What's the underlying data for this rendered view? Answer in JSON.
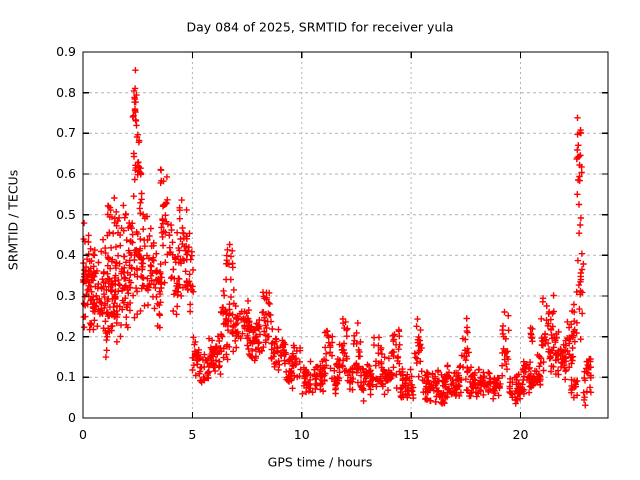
{
  "chart_data": {
    "type": "scatter",
    "title": "Day 084 of 2025, SRMTID for receiver yula",
    "xlabel": "GPS time / hours",
    "ylabel": "SRMTID / TECUs",
    "xlim": [
      0,
      24
    ],
    "ylim": [
      0,
      0.9
    ],
    "x_ticks": [
      0,
      5,
      10,
      15,
      20
    ],
    "x_tick_labels": [
      "0",
      "5",
      "10",
      "15",
      "20"
    ],
    "y_ticks": [
      0,
      0.1,
      0.2,
      0.3,
      0.4,
      0.5,
      0.6,
      0.7,
      0.8,
      0.9
    ],
    "y_tick_labels": [
      "0",
      "0.1",
      "0.2",
      "0.3",
      "0.4",
      "0.5",
      "0.6",
      "0.7",
      "0.8",
      "0.9"
    ],
    "grid": true,
    "grid_style": "dashed",
    "grid_color": "#b2b2b2",
    "border_color": "#000000",
    "background_color": "#ffffff",
    "legend": false,
    "marker": "plus",
    "marker_color": "#ff0000",
    "cluster_format": "[x_start_hours, x_end_hours, y_min_TECUs, y_max_TECUs, point_count]",
    "point_clusters": [
      [
        0.0,
        0.35,
        0.19,
        0.5,
        45
      ],
      [
        0.35,
        0.9,
        0.18,
        0.42,
        55
      ],
      [
        0.9,
        1.4,
        0.14,
        0.47,
        60
      ],
      [
        1.1,
        1.7,
        0.44,
        0.57,
        18
      ],
      [
        1.4,
        2.2,
        0.18,
        0.48,
        80
      ],
      [
        1.75,
        2.2,
        0.45,
        0.53,
        8
      ],
      [
        2.2,
        2.7,
        0.24,
        0.56,
        42
      ],
      [
        2.25,
        2.45,
        0.68,
        0.88,
        16
      ],
      [
        2.3,
        2.65,
        0.55,
        0.72,
        22
      ],
      [
        2.7,
        3.3,
        0.25,
        0.53,
        45
      ],
      [
        3.3,
        3.6,
        0.2,
        0.46,
        28
      ],
      [
        3.55,
        4.05,
        0.3,
        0.66,
        36
      ],
      [
        4.05,
        4.4,
        0.2,
        0.46,
        28
      ],
      [
        4.4,
        4.75,
        0.28,
        0.56,
        24
      ],
      [
        4.7,
        5.05,
        0.22,
        0.47,
        26
      ],
      [
        5.0,
        5.3,
        0.08,
        0.22,
        20
      ],
      [
        5.3,
        5.75,
        0.07,
        0.16,
        26
      ],
      [
        5.75,
        6.3,
        0.1,
        0.22,
        40
      ],
      [
        6.3,
        6.9,
        0.13,
        0.33,
        44
      ],
      [
        6.5,
        6.9,
        0.33,
        0.45,
        13
      ],
      [
        6.9,
        7.6,
        0.15,
        0.3,
        50
      ],
      [
        7.6,
        8.2,
        0.13,
        0.26,
        44
      ],
      [
        8.2,
        8.6,
        0.15,
        0.34,
        28
      ],
      [
        8.6,
        9.3,
        0.1,
        0.22,
        44
      ],
      [
        9.3,
        9.6,
        0.06,
        0.16,
        20
      ],
      [
        9.55,
        9.95,
        0.08,
        0.21,
        22
      ],
      [
        9.95,
        11.05,
        0.05,
        0.15,
        65
      ],
      [
        11.05,
        11.4,
        0.08,
        0.25,
        20
      ],
      [
        11.4,
        11.7,
        0.05,
        0.15,
        20
      ],
      [
        11.7,
        12.1,
        0.07,
        0.26,
        25
      ],
      [
        12.1,
        12.35,
        0.05,
        0.14,
        16
      ],
      [
        12.35,
        12.7,
        0.07,
        0.24,
        20
      ],
      [
        12.7,
        13.3,
        0.04,
        0.14,
        40
      ],
      [
        13.3,
        13.7,
        0.06,
        0.21,
        24
      ],
      [
        13.7,
        14.1,
        0.05,
        0.15,
        28
      ],
      [
        14.1,
        14.5,
        0.06,
        0.25,
        24
      ],
      [
        14.5,
        15.1,
        0.04,
        0.13,
        40
      ],
      [
        15.15,
        15.5,
        0.07,
        0.26,
        20
      ],
      [
        15.5,
        16.1,
        0.04,
        0.12,
        40
      ],
      [
        16.1,
        16.6,
        0.02,
        0.12,
        40
      ],
      [
        16.6,
        17.3,
        0.04,
        0.14,
        45
      ],
      [
        17.3,
        17.65,
        0.06,
        0.26,
        22
      ],
      [
        17.65,
        18.4,
        0.04,
        0.13,
        50
      ],
      [
        18.4,
        19.1,
        0.04,
        0.12,
        45
      ],
      [
        19.15,
        19.5,
        0.06,
        0.29,
        20
      ],
      [
        19.5,
        20.1,
        0.03,
        0.11,
        40
      ],
      [
        20.1,
        20.6,
        0.05,
        0.15,
        34
      ],
      [
        20.35,
        20.55,
        0.15,
        0.24,
        8
      ],
      [
        20.6,
        20.95,
        0.06,
        0.16,
        24
      ],
      [
        20.95,
        21.6,
        0.1,
        0.31,
        45
      ],
      [
        21.6,
        22.1,
        0.08,
        0.22,
        40
      ],
      [
        22.1,
        22.5,
        0.1,
        0.3,
        28
      ],
      [
        22.3,
        22.6,
        0.03,
        0.11,
        14
      ],
      [
        22.55,
        22.8,
        0.42,
        0.78,
        22
      ],
      [
        22.55,
        22.9,
        0.18,
        0.44,
        18
      ],
      [
        22.85,
        23.25,
        0.02,
        0.18,
        26
      ]
    ],
    "notable_points": {
      "max_value": 0.88,
      "max_value_time": 2.35,
      "late_spike_max": 0.78,
      "late_spike_time": 22.7,
      "min_value": 0.02
    }
  }
}
